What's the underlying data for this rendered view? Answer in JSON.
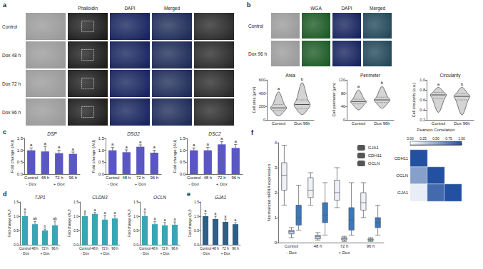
{
  "figure": {
    "images": [
      {
        "panel": "a",
        "columns": [
          null,
          "Phalloidin",
          "DAPI",
          "Merged",
          null
        ],
        "rows": [
          "Control",
          "Dox 48 h",
          "Dox 72 h",
          "Dox 96 h"
        ]
      },
      {
        "panel": "b",
        "columns": [
          null,
          "WGA",
          "DAPI",
          "Merged"
        ],
        "rows": [
          "Control",
          "Dox 96 h"
        ]
      }
    ]
  },
  "chart_data": [
    {
      "type": "violin",
      "title": "Area",
      "ylabel": "Cell area (μm²)",
      "categories": [
        "Control",
        "Dox 96h"
      ],
      "values": [
        [
          60,
          140,
          180,
          230,
          420
        ],
        [
          80,
          170,
          230,
          300,
          560
        ]
      ],
      "annotations": [
        "a",
        "b"
      ],
      "color": "#d4d4d4",
      "ylim": [
        0,
        600
      ],
      "yticks": [
        0,
        200,
        400,
        600
      ]
    },
    {
      "type": "violin",
      "title": "Perimeter",
      "ylabel": "Cell perimeter (μm)",
      "categories": [
        "Control",
        "Dox 96h"
      ],
      "values": [
        [
          30,
          48,
          55,
          62,
          90
        ],
        [
          35,
          52,
          60,
          68,
          100
        ]
      ],
      "annotations": [
        "a",
        "b"
      ],
      "color": "#d4d4d4",
      "ylim": [
        0,
        120
      ],
      "yticks": [
        0,
        40,
        80,
        120
      ]
    },
    {
      "type": "violin",
      "title": "Circularity",
      "ylabel": "Cell circularity (a.u.)",
      "categories": [
        "Control",
        "Dox 96h"
      ],
      "values": [
        [
          0.35,
          0.63,
          0.7,
          0.75,
          0.85
        ],
        [
          0.3,
          0.6,
          0.67,
          0.73,
          0.85
        ]
      ],
      "annotations": [
        "a",
        "b"
      ],
      "color": "#d4d4d4",
      "ylim": [
        0.2,
        1.0
      ],
      "yticks": [
        0.2,
        0.4,
        0.6,
        0.8,
        {
          "value": 1.0,
          "label": "1.0"
        }
      ]
    },
    {
      "type": "bar",
      "panel": "c",
      "title": "DSP",
      "ylabel": "Fold change (AU)",
      "categories": [
        "Control",
        "48 h",
        "72 h",
        "96 h"
      ],
      "groups": [
        "- Dox",
        "+ Dox",
        "+ Dox",
        "+ Dox"
      ],
      "values": [
        1.0,
        0.95,
        0.88,
        0.85
      ],
      "errors": [
        0.1,
        0.22,
        0.12,
        0.08
      ],
      "annotations": [
        "a",
        "a",
        "a",
        "a"
      ],
      "color": "#5a57c4",
      "ylim": [
        0,
        1.5
      ],
      "yticks": [
        {
          "value": 0,
          "label": "0.0"
        },
        0.5,
        {
          "value": 1,
          "label": "1.0"
        },
        1.5
      ]
    },
    {
      "type": "bar",
      "title": "DSG2",
      "ylabel": "Fold change (AU)",
      "categories": [
        "Control",
        "48 h",
        "72 h",
        "96 h"
      ],
      "groups": [
        "- Dox",
        "+ Dox",
        "+ Dox",
        "+ Dox"
      ],
      "values": [
        1.0,
        0.92,
        1.15,
        0.9
      ],
      "errors": [
        0.12,
        0.1,
        0.08,
        0.1
      ],
      "annotations": [
        "a",
        "a",
        "a",
        "a"
      ],
      "color": "#5a57c4",
      "ylim": [
        0,
        1.5
      ],
      "yticks": [
        {
          "value": 0,
          "label": "0.0"
        },
        0.5,
        {
          "value": 1,
          "label": "1.0"
        },
        1.5
      ]
    },
    {
      "type": "bar",
      "title": "DSC2",
      "ylabel": "Fold change (AU)",
      "categories": [
        "Control",
        "48 h",
        "72 h",
        "96 h"
      ],
      "groups": [
        "- Dox",
        "+ Dox",
        "+ Dox",
        "+ Dox"
      ],
      "values": [
        1.0,
        1.0,
        1.25,
        1.1
      ],
      "errors": [
        0.1,
        0.12,
        0.12,
        0.15
      ],
      "annotations": [
        "a",
        "a",
        "a",
        "a"
      ],
      "color": "#5a57c4",
      "ylim": [
        0,
        1.5
      ],
      "yticks": [
        {
          "value": 0,
          "label": "0.0"
        },
        0.5,
        {
          "value": 1,
          "label": "1.0"
        },
        1.5
      ]
    },
    {
      "type": "bar",
      "panel": "d",
      "title": "TJP1",
      "ylabel": "Fold change (AU)",
      "categories": [
        "Control",
        "48 h",
        "72 h",
        "96 h"
      ],
      "groups": [
        "- Dox",
        "+ Dox",
        "+ Dox",
        "+ Dox"
      ],
      "values": [
        1.0,
        0.72,
        0.5,
        0.68
      ],
      "errors": [
        0.15,
        0.1,
        0.05,
        0.15
      ],
      "annotations": [
        "a",
        "ab",
        "b",
        "ab"
      ],
      "color": "#3aa5b5",
      "ylim": [
        0,
        1.5
      ],
      "yticks": [
        {
          "value": 0,
          "label": "0.0"
        },
        0.5,
        {
          "value": 1,
          "label": "1.0"
        },
        1.5
      ]
    },
    {
      "type": "bar",
      "title": "CLDN3",
      "ylabel": "Fold change (AU)",
      "categories": [
        "Control",
        "48 h",
        "72 h",
        "96 h"
      ],
      "groups": [
        "- Dox",
        "+ Dox",
        "+ Dox",
        "+ Dox"
      ],
      "values": [
        1.0,
        1.08,
        0.88,
        0.92
      ],
      "errors": [
        0.08,
        0.05,
        0.15,
        0.1
      ],
      "annotations": [
        "a",
        "a",
        "a",
        "a"
      ],
      "color": "#3aa5b5",
      "ylim": [
        0,
        1.5
      ],
      "yticks": [
        {
          "value": 0,
          "label": "0.0"
        },
        0.5,
        {
          "value": 1,
          "label": "1.0"
        },
        1.5
      ]
    },
    {
      "type": "bar",
      "title": "OCLN",
      "ylabel": "Fold change (AU)",
      "categories": [
        "Control",
        "48 h",
        "72 h",
        "96 h"
      ],
      "groups": [
        "- Dox",
        "+ Dox",
        "+ Dox",
        "+ Dox"
      ],
      "values": [
        1.0,
        0.72,
        0.68,
        0.7
      ],
      "errors": [
        0.15,
        0.1,
        0.1,
        0.1
      ],
      "annotations": [
        "a",
        "a",
        "a",
        "a"
      ],
      "color": "#3aa5b5",
      "ylim": [
        0,
        1.5
      ],
      "yticks": [
        {
          "value": 0,
          "label": "0.0"
        },
        0.5,
        {
          "value": 1,
          "label": "1.0"
        },
        1.5
      ]
    },
    {
      "type": "bar",
      "panel": "e",
      "title": "GJA1",
      "ylabel": "Fold change (AU)",
      "categories": [
        "Control",
        "48 h",
        "72 h",
        "96 h"
      ],
      "groups": [
        "- Dox",
        "+ Dox",
        "+ Dox",
        "+ Dox"
      ],
      "values": [
        1.0,
        0.9,
        0.8,
        0.72
      ],
      "errors": [
        0.1,
        0.1,
        0.1,
        0.05
      ],
      "annotations": [
        "a",
        "a",
        "a",
        "a"
      ],
      "color": "#2f5f86",
      "ylim": [
        0,
        1.5
      ],
      "yticks": [
        {
          "value": 0,
          "label": "0.0"
        },
        0.5,
        {
          "value": 1,
          "label": "1.0"
        },
        1.5
      ]
    },
    {
      "type": "boxplot",
      "panel": "f",
      "ylabel": "Normalized mRNA expression",
      "categories": [
        "Control",
        "48 h",
        "72 h",
        "96 h"
      ],
      "groups": [
        "- Dox",
        "+ Dox",
        "+ Dox",
        "+ Dox"
      ],
      "legend": "top-right",
      "ylim": [
        0,
        4
      ],
      "yticks": [
        0,
        1,
        2,
        3,
        4
      ],
      "series": [
        {
          "name": "GJA1",
          "color": "#eef1f7",
          "values": [
            [
              1.5,
              2.1,
              2.7,
              3.2,
              3.9
            ],
            [
              1.5,
              1.8,
              2.1,
              2.6,
              2.8
            ],
            [
              1.4,
              1.7,
              2.0,
              2.5,
              3.0
            ],
            [
              1.0,
              1.3,
              1.6,
              2.0,
              2.4
            ]
          ]
        },
        {
          "name": "CDH11",
          "color": "#b7cde8",
          "values": [
            [
              0.2,
              0.35,
              0.45,
              0.5,
              0.6
            ],
            [
              0.1,
              0.15,
              0.25,
              0.3,
              0.4
            ],
            [
              0.05,
              0.1,
              0.15,
              0.2,
              0.25
            ],
            [
              0.05,
              0.08,
              0.12,
              0.15,
              0.2
            ]
          ]
        },
        {
          "name": "OCLN",
          "color": "#3b78bd",
          "values": [
            [
              0.5,
              0.7,
              1.0,
              1.5,
              2.3
            ],
            [
              0.3,
              0.8,
              1.1,
              1.6,
              2.4
            ],
            [
              0.3,
              0.5,
              0.9,
              1.4,
              2.4
            ],
            [
              0.3,
              0.6,
              0.8,
              1.0,
              1.5
            ]
          ]
        }
      ]
    },
    {
      "type": "heatmap",
      "rows": [
        "CDH11",
        "OCLN",
        "GJA1"
      ],
      "columns": [
        null,
        null,
        null
      ],
      "cells": [
        [
          1.0,
          null,
          null
        ],
        [
          0.55,
          1.0,
          null
        ],
        [
          0.1,
          0.85,
          1.0
        ]
      ],
      "colorbar": {
        "title": "Pearson Correlation",
        "range": [
          0,
          1
        ],
        "ticks": [
          {
            "value": 0,
            "label": "0.00"
          },
          {
            "value": 0.25,
            "label": "0.25"
          },
          {
            "value": 0.5,
            "label": "0.50"
          },
          {
            "value": 0.75,
            "label": "0.75"
          },
          {
            "value": 1,
            "label": "1.00"
          }
        ]
      }
    }
  ]
}
